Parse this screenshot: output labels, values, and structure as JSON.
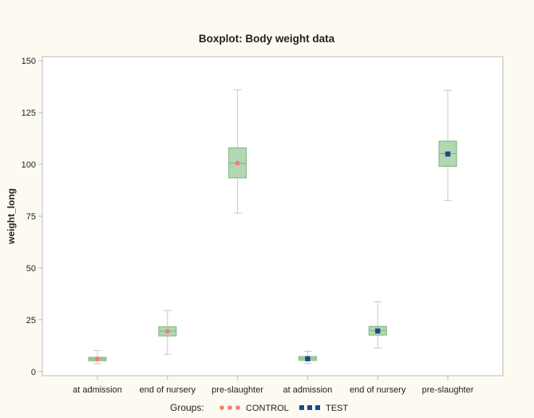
{
  "chart_data": {
    "type": "boxplot",
    "title": "Boxplot: Body weight data",
    "xlabel": "",
    "ylabel": "weight_long",
    "ylim": [
      -2,
      152
    ],
    "yticks": [
      0,
      25,
      50,
      75,
      100,
      125,
      150
    ],
    "grid": false,
    "legend_position": "bottom",
    "legend_title": "Groups:",
    "categories": [
      "at admission",
      "end of nursery",
      "pre-slaughter",
      "at admission",
      "end of nursery",
      "pre-slaughter"
    ],
    "series": [
      {
        "name": "CONTROL",
        "marker": "circle",
        "marker_color": "#f28072",
        "boxes": [
          {
            "category_index": 0,
            "min": 3.8,
            "q1": 5.2,
            "median": 6.1,
            "mean": 6.1,
            "q3": 6.9,
            "max": 10.2
          },
          {
            "category_index": 1,
            "min": 8.3,
            "q1": 17.2,
            "median": 19.5,
            "mean": 19.4,
            "q3": 21.6,
            "max": 29.5
          },
          {
            "category_index": 2,
            "min": 76.5,
            "q1": 93.5,
            "median": 100.5,
            "mean": 100.6,
            "q3": 108.0,
            "max": 136.0
          }
        ]
      },
      {
        "name": "TEST",
        "marker": "square",
        "marker_color": "#1b4a8a",
        "boxes": [
          {
            "category_index": 3,
            "min": 3.9,
            "q1": 5.4,
            "median": 6.3,
            "mean": 6.2,
            "q3": 7.3,
            "max": 9.8
          },
          {
            "category_index": 4,
            "min": 11.4,
            "q1": 17.6,
            "median": 19.8,
            "mean": 19.6,
            "q3": 21.8,
            "max": 33.7
          },
          {
            "category_index": 5,
            "min": 82.6,
            "q1": 99.0,
            "median": 105.2,
            "mean": 105.0,
            "q3": 111.2,
            "max": 135.7
          }
        ]
      }
    ],
    "colors": {
      "box_fill": "#b3d6b3",
      "box_stroke": "#7fb37f",
      "whisker": "#c8c8c8",
      "axis": "#b8b8b8",
      "text": "#222222",
      "plot_background": "#ffffff",
      "page_background": "#fdfaf2"
    }
  }
}
